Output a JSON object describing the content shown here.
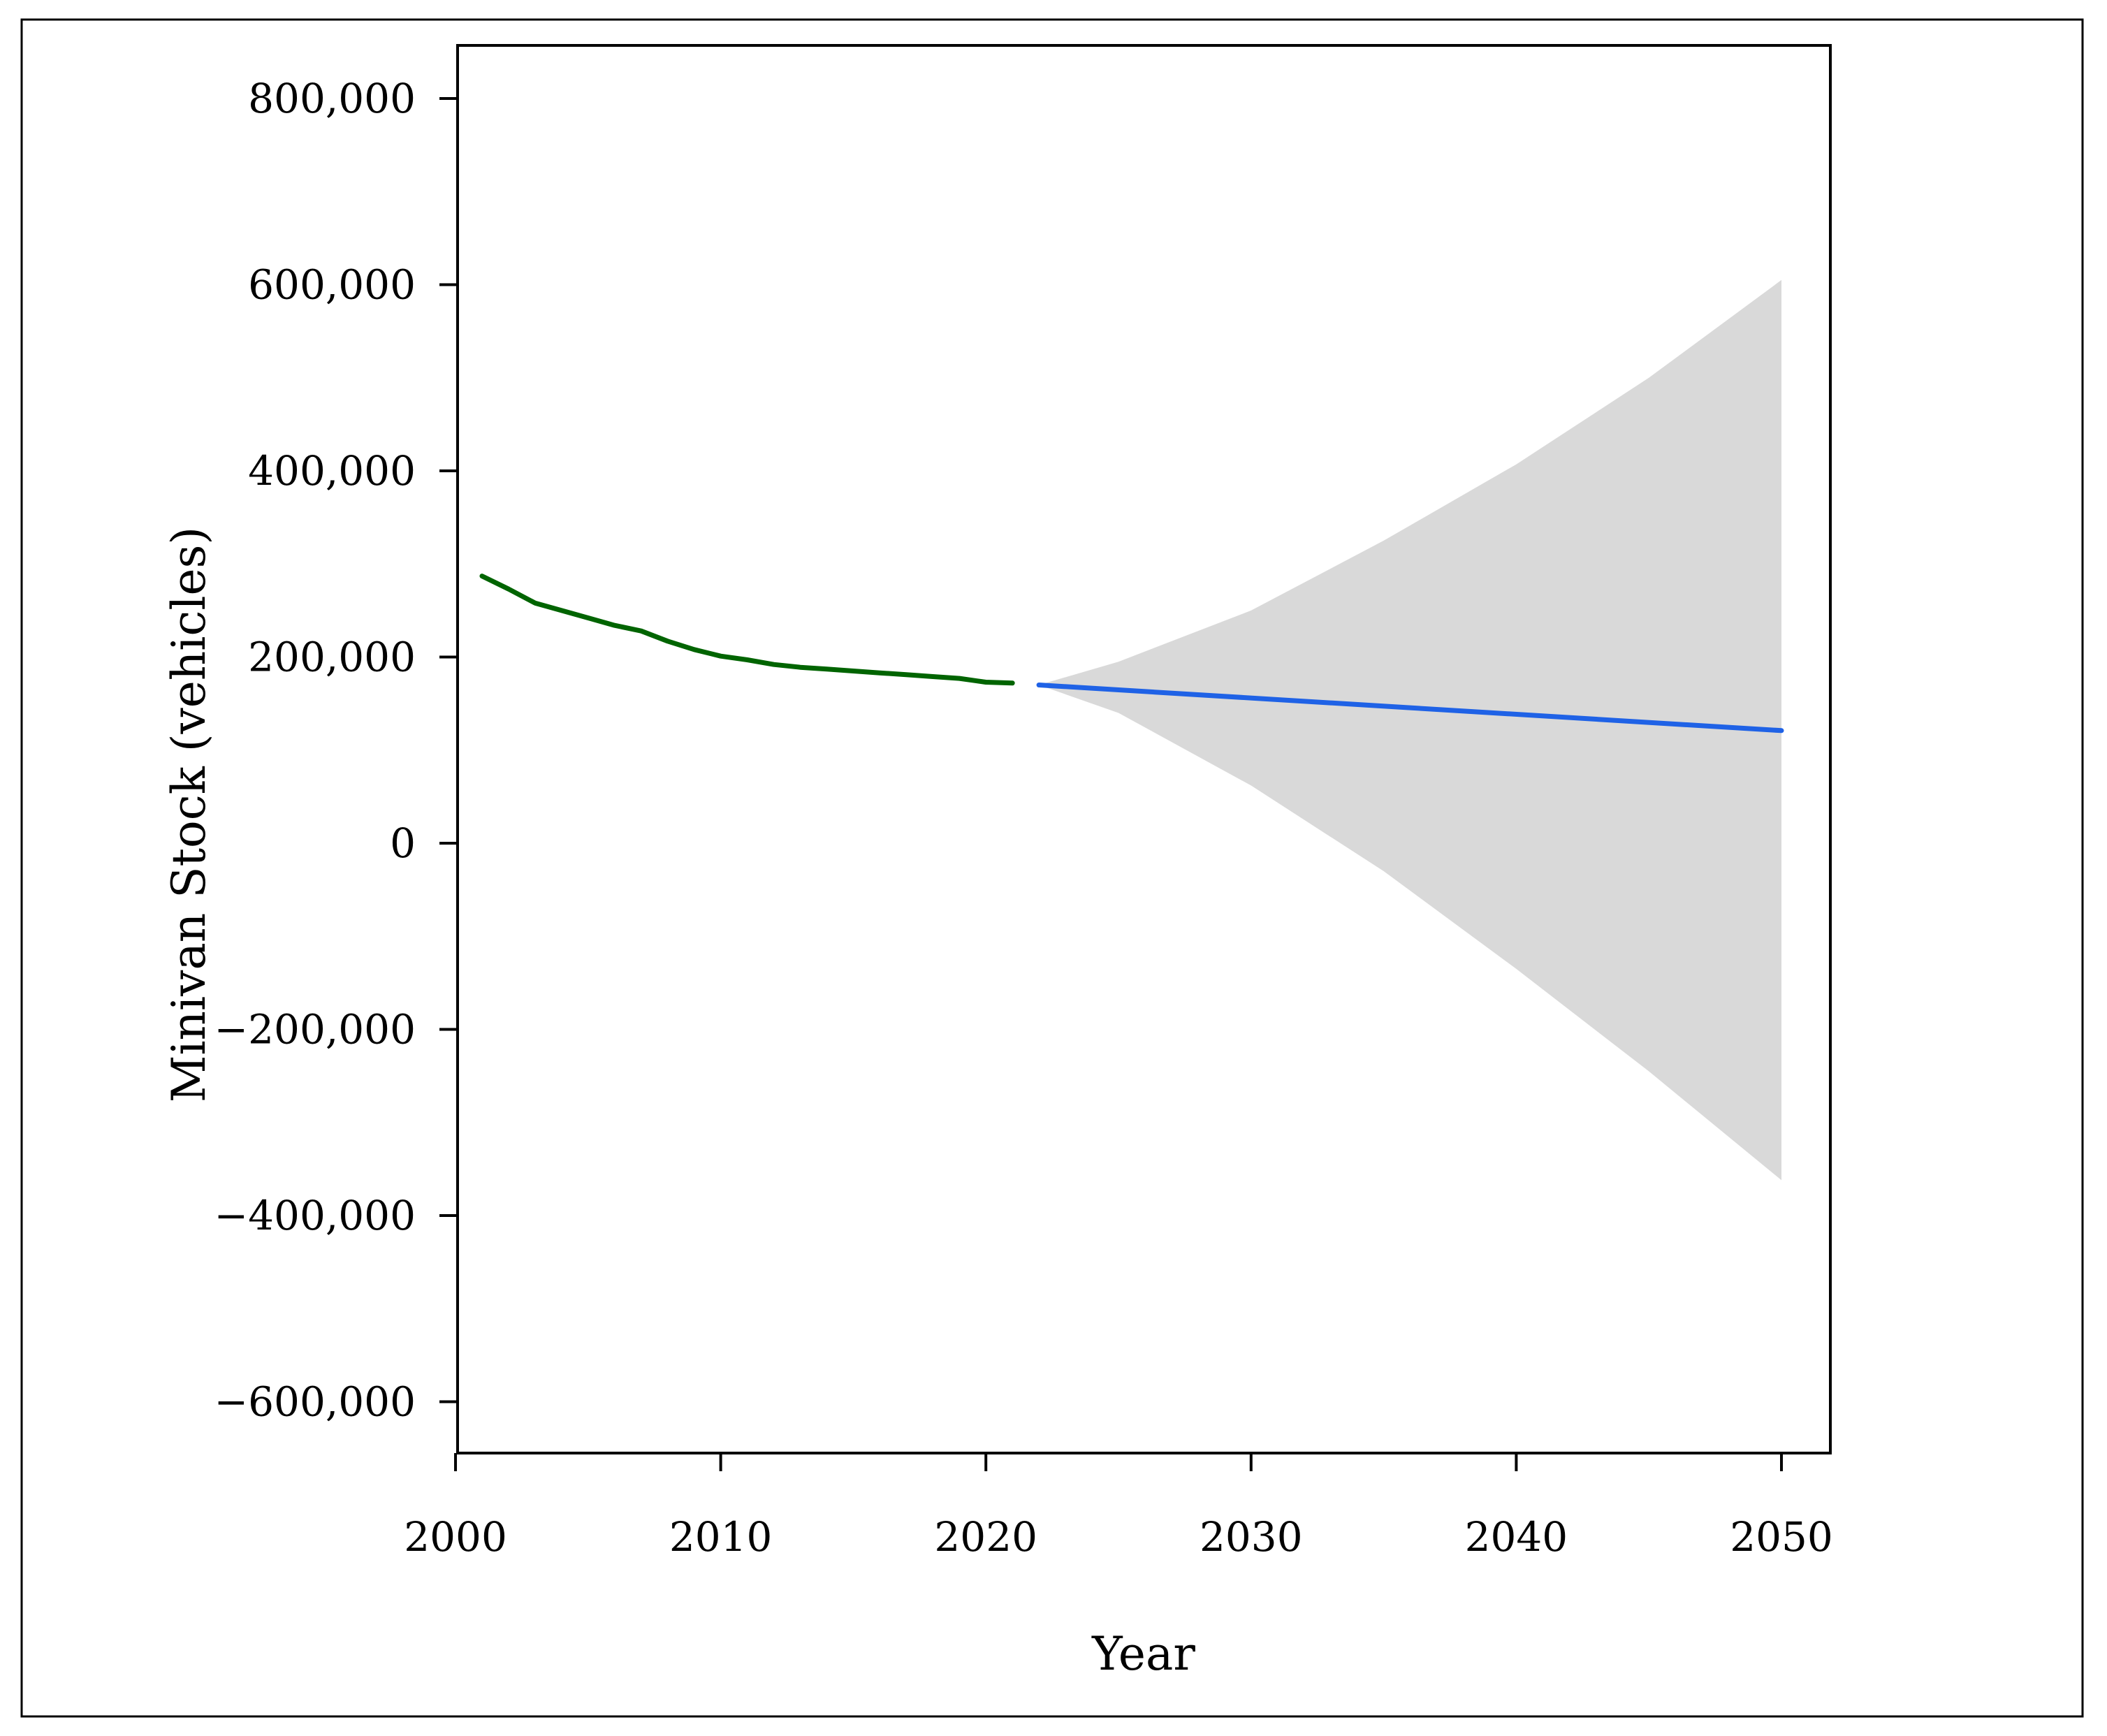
{
  "chart_data": {
    "type": "line",
    "title": "",
    "xlabel": "Year",
    "ylabel": "Minivan Stock (vehicles)",
    "xlim": [
      1999,
      2052
    ],
    "ylim": [
      -660000,
      855000
    ],
    "x_ticks": [
      2000,
      2010,
      2020,
      2030,
      2040,
      2050
    ],
    "x_tick_labels": [
      "2000",
      "2010",
      "2020",
      "2030",
      "2040",
      "2050"
    ],
    "y_ticks": [
      800000,
      600000,
      400000,
      200000,
      0,
      -200000,
      -400000,
      -600000
    ],
    "y_tick_labels": [
      "800,000",
      "600,000",
      "400,000",
      "200,000",
      "0",
      "−200,000",
      "−400,000",
      "−600,000"
    ],
    "grid": false,
    "series": [
      {
        "color": "#006400",
        "x": [
          2001,
          2002,
          2003,
          2004,
          2005,
          2006,
          2007,
          2008,
          2009,
          2010,
          2011,
          2012,
          2013,
          2014,
          2015,
          2016,
          2017,
          2018,
          2019,
          2020,
          2021
        ],
        "y": [
          287000,
          273000,
          258000,
          250000,
          242000,
          234000,
          228000,
          217000,
          208000,
          201000,
          197000,
          192000,
          189000,
          187000,
          185000,
          183000,
          181000,
          179000,
          177000,
          173000,
          172000
        ]
      },
      {
        "color": "#1f62e6",
        "x": [
          2022,
          2050
        ],
        "y": [
          170000,
          121000
        ]
      }
    ],
    "confidence_band": {
      "color": "#d9d9d9",
      "x": [
        2022,
        2025,
        2030,
        2035,
        2040,
        2045,
        2050
      ],
      "upper": [
        170000,
        195000,
        250000,
        325000,
        407000,
        500000,
        605000
      ],
      "lower": [
        170000,
        140000,
        62000,
        -30000,
        -135000,
        -245000,
        -362000
      ]
    }
  }
}
